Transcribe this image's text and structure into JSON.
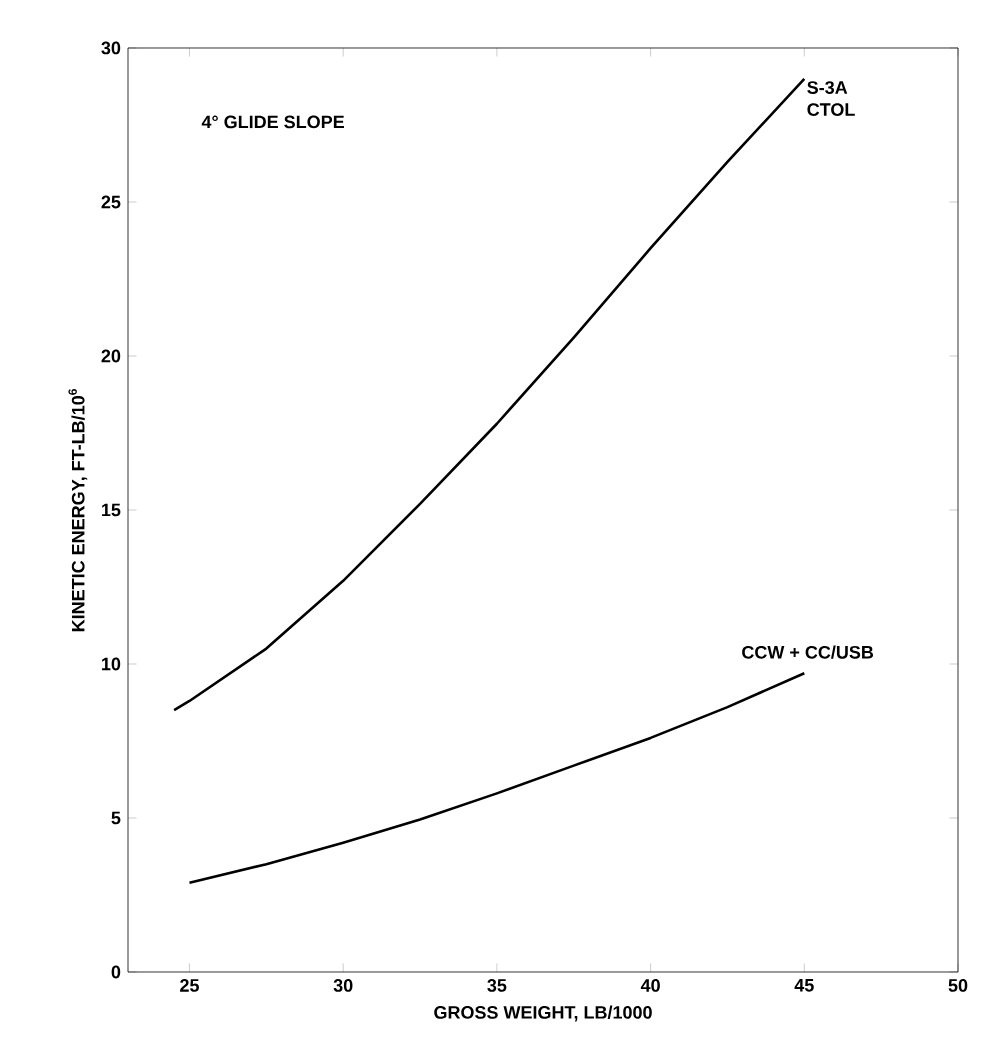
{
  "chart_data": {
    "type": "line",
    "xlabel": "GROSS WEIGHT, LB/1000",
    "ylabel": "KINETIC ENERGY, FT-LB/10$^{6}$",
    "annotations": [
      "4° GLIDE SLOPE"
    ],
    "xlim": [
      23,
      50
    ],
    "xticks": [
      25,
      30,
      35,
      40,
      45,
      50
    ],
    "ylim": [
      0,
      30
    ],
    "yticks": [
      0,
      5,
      10,
      15,
      20,
      25,
      30
    ],
    "grid": false,
    "legend": false,
    "marker": "none",
    "line_style": "solid",
    "series": [
      {
        "name": "S-3A CTOL",
        "color": "#000000",
        "x": [
          24.5,
          25,
          27.5,
          30,
          32.5,
          35,
          37.5,
          40,
          42.5,
          45
        ],
        "values": [
          8.5,
          8.8,
          10.5,
          12.7,
          15.2,
          17.8,
          20.6,
          23.5,
          26.3,
          29.0
        ]
      },
      {
        "name": "CCW + CC/USB",
        "color": "#000000",
        "x": [
          25,
          27.5,
          30,
          32.5,
          35,
          37.5,
          40,
          42.5,
          45
        ],
        "values": [
          2.9,
          3.5,
          4.2,
          4.95,
          5.8,
          6.7,
          7.6,
          8.6,
          9.7
        ]
      }
    ]
  }
}
